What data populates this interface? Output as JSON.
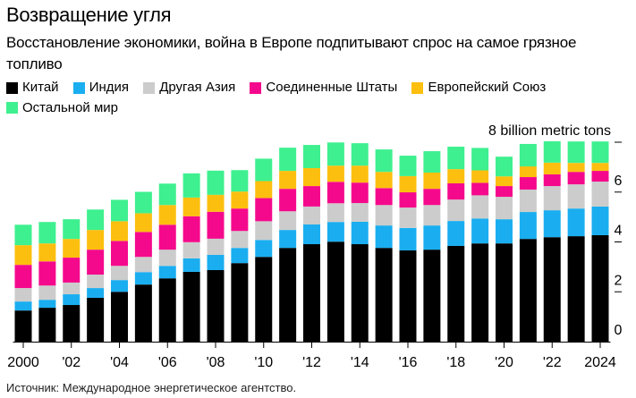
{
  "header": {
    "title": "Возвращение угля",
    "subtitle": "Восстановление экономики, война в Европе подпитывают спрос на самое грязное топливо"
  },
  "source": "Источник: Международное энергетическое агентство.",
  "chart_data": {
    "type": "bar",
    "stacked": true,
    "title": "Возвращение угля",
    "subtitle": "Восстановление экономики, война в Европе подпитывают спрос на самое грязное топливо",
    "xlabel": "",
    "ylabel": "",
    "y_unit_label": "8 billion metric tons",
    "ylim": [
      0,
      8
    ],
    "y_ticks": [
      0,
      2,
      4,
      6,
      8
    ],
    "y_tick_labels": [
      "0",
      "2",
      "4",
      "6",
      ""
    ],
    "y_axis_position": "right",
    "grid": false,
    "legend_position": "top-left",
    "categories": [
      "2000",
      "2001",
      "2002",
      "2003",
      "2004",
      "2005",
      "2006",
      "2007",
      "2008",
      "2009",
      "2010",
      "2011",
      "2012",
      "2013",
      "2014",
      "2015",
      "2016",
      "2017",
      "2018",
      "2019",
      "2020",
      "2021",
      "2022",
      "2023",
      "2024"
    ],
    "x_tick_labels": [
      {
        "year": "2000",
        "label": "2000"
      },
      {
        "year": "2002",
        "label": "'02"
      },
      {
        "year": "2004",
        "label": "'04"
      },
      {
        "year": "2006",
        "label": "'06"
      },
      {
        "year": "2008",
        "label": "'08"
      },
      {
        "year": "2010",
        "label": "'10"
      },
      {
        "year": "2012",
        "label": "'12"
      },
      {
        "year": "2014",
        "label": "'14"
      },
      {
        "year": "2016",
        "label": "'16"
      },
      {
        "year": "2018",
        "label": "'18"
      },
      {
        "year": "2020",
        "label": "'20"
      },
      {
        "year": "2022",
        "label": "'22"
      },
      {
        "year": "2024",
        "label": "2024"
      }
    ],
    "series": [
      {
        "name": "Китай",
        "color": "#000000",
        "values": [
          1.25,
          1.36,
          1.47,
          1.76,
          2.0,
          2.29,
          2.54,
          2.8,
          2.87,
          3.15,
          3.4,
          3.76,
          3.91,
          4.01,
          3.91,
          3.76,
          3.66,
          3.69,
          3.84,
          3.94,
          3.94,
          4.12,
          4.19,
          4.23,
          4.27
        ]
      },
      {
        "name": "Индия",
        "color": "#1aaef0",
        "values": [
          0.36,
          0.32,
          0.43,
          0.39,
          0.47,
          0.5,
          0.5,
          0.54,
          0.61,
          0.61,
          0.68,
          0.72,
          0.79,
          0.79,
          0.9,
          0.9,
          0.9,
          0.97,
          1.0,
          1.0,
          0.97,
          1.08,
          1.08,
          1.11,
          1.15
        ]
      },
      {
        "name": "Другая Азия",
        "color": "#cccccc",
        "values": [
          0.54,
          0.57,
          0.47,
          0.54,
          0.57,
          0.61,
          0.65,
          0.65,
          0.65,
          0.68,
          0.75,
          0.75,
          0.72,
          0.75,
          0.75,
          0.82,
          0.82,
          0.82,
          0.86,
          0.93,
          0.9,
          0.9,
          0.97,
          0.97,
          1.0
        ]
      },
      {
        "name": "Соединенные Штаты",
        "color": "#f5098c",
        "values": [
          0.93,
          0.97,
          1.0,
          1.0,
          1.0,
          1.0,
          1.0,
          1.04,
          1.08,
          0.9,
          0.93,
          0.9,
          0.82,
          0.86,
          0.82,
          0.68,
          0.61,
          0.65,
          0.65,
          0.5,
          0.43,
          0.5,
          0.47,
          0.5,
          0.43
        ]
      },
      {
        "name": "Европейский Союз",
        "color": "#fdbf0f",
        "values": [
          0.79,
          0.72,
          0.75,
          0.79,
          0.79,
          0.75,
          0.79,
          0.75,
          0.68,
          0.68,
          0.68,
          0.72,
          0.72,
          0.65,
          0.68,
          0.65,
          0.65,
          0.65,
          0.57,
          0.5,
          0.39,
          0.43,
          0.47,
          0.36,
          0.32
        ]
      },
      {
        "name": "Остальной мир",
        "color": "#3ef08f",
        "values": [
          0.82,
          0.86,
          0.79,
          0.82,
          0.86,
          0.86,
          0.86,
          0.97,
          0.97,
          0.86,
          0.9,
          0.93,
          0.93,
          0.93,
          0.9,
          0.9,
          0.82,
          0.86,
          0.9,
          0.9,
          0.79,
          0.9,
          0.86,
          0.86,
          0.86
        ]
      }
    ]
  }
}
